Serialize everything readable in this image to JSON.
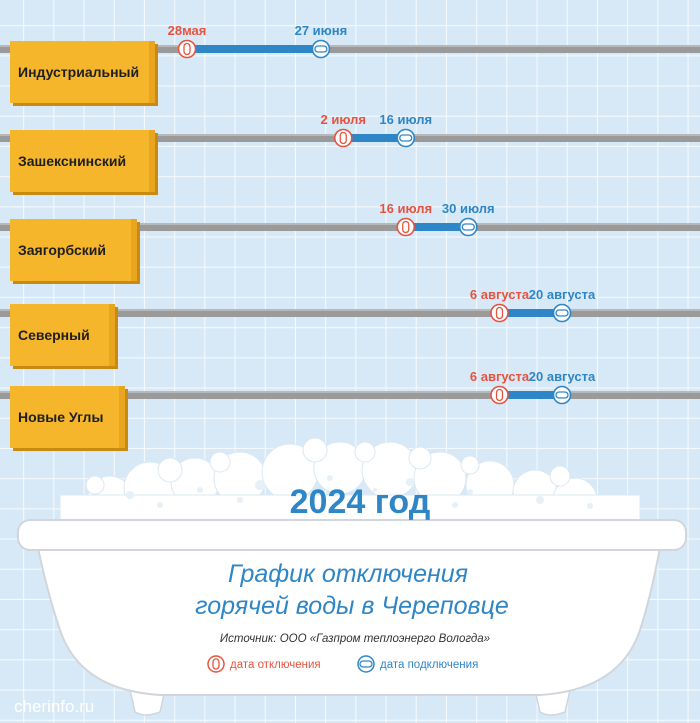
{
  "chart_data": {
    "type": "timeline",
    "title": "2024 год",
    "subtitle": "График отключения горячей воды в Череповце",
    "source": "Источник: ООО «Газпром теплоэнерго Вологда»",
    "legend": {
      "off_label": "дата отключения",
      "on_label": "дата подключения",
      "placement": "bottom"
    },
    "colors": {
      "off": "#e8533f",
      "on": "#2f86c6",
      "pipe": "#9a9a9a",
      "towel": "#f5b62b",
      "title": "#2f86c6"
    },
    "districts": [
      {
        "name": "Индустриальный",
        "off_date": "2024-05-28",
        "on_date": "2024-06-27",
        "off_label": "28мая",
        "on_label": "27 июня"
      },
      {
        "name": "Зашекснинский",
        "off_date": "2024-07-02",
        "on_date": "2024-07-16",
        "off_label": "2 июля",
        "on_label": "16 июля"
      },
      {
        "name": "Заягорбский",
        "off_date": "2024-07-16",
        "on_date": "2024-07-30",
        "off_label": "16 июля",
        "on_label": "30 июля"
      },
      {
        "name": "Северный",
        "off_date": "2024-08-06",
        "on_date": "2024-08-20",
        "off_label": "6 августа",
        "on_label": "20 августа"
      },
      {
        "name": "Новые Углы",
        "off_date": "2024-08-06",
        "on_date": "2024-08-20",
        "off_label": "6 августа",
        "on_label": "20 августа"
      }
    ]
  },
  "watermark": "cherinfo.ru"
}
